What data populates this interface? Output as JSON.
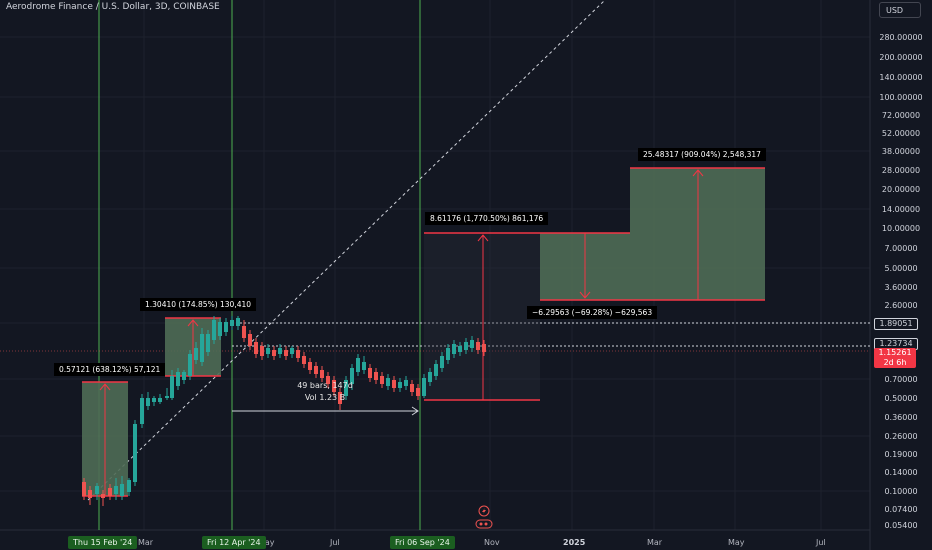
{
  "header": {
    "symbol_title": "Aerodrome Finance / U.S. Dollar, 3D, COINBASE",
    "currency_button": "USD"
  },
  "price_axis": {
    "labels": [
      "280.00000",
      "200.00000",
      "140.00000",
      "100.00000",
      "72.00000",
      "52.00000",
      "38.00000",
      "28.00000",
      "20.00000",
      "14.00000",
      "10.00000",
      "7.00000",
      "5.00000",
      "3.60000",
      "2.60000",
      "0.70000",
      "0.50000",
      "0.36000",
      "0.26000",
      "0.19000",
      "0.14000",
      "0.10000",
      "0.07400",
      "0.05400"
    ]
  },
  "price_tags": {
    "level_line": "1.89051",
    "cursor_line": "1.23734",
    "last_price": "1.15261",
    "countdown": "2d 6h"
  },
  "time_axis": {
    "labels": [
      "Mar",
      "May",
      "Jul",
      "Nov",
      "2025",
      "Mar",
      "May",
      "Jul"
    ],
    "highlighted": [
      "Thu 15 Feb '24",
      "Fri 12 Apr '24",
      "Fri 06 Sep '24"
    ]
  },
  "measurements": {
    "m1": "0.57121 (638.12%) 57,121",
    "m2": "1.30410 (174.85%) 130,410",
    "m3": "8.61176 (1,770.50%) 861,176",
    "m4": "25.48317 (909.04%) 2,548,317",
    "m5": "−6.29563 (−69.28%) −629,563"
  },
  "date_range": {
    "bars": "49 bars, 147d",
    "volume": "Vol 1.23 B"
  },
  "colors": {
    "background": "#131722",
    "up": "#26a69a",
    "down": "#ef5350",
    "measure_fill": "#4f6b55",
    "measure_border": "#f23645",
    "vline": "#4caf50"
  }
}
